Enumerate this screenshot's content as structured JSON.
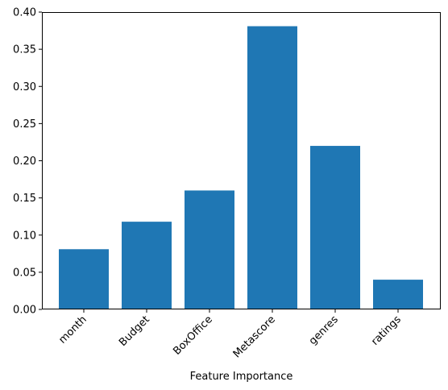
{
  "chart_data": {
    "type": "bar",
    "categories": [
      "month",
      "Budget",
      "BoxOffice",
      "Metascore",
      "genres",
      "ratings"
    ],
    "values": [
      0.081,
      0.118,
      0.16,
      0.381,
      0.22,
      0.04
    ],
    "title": "",
    "xlabel": "Feature Importance",
    "ylabel": "",
    "ylim": [
      0,
      0.4
    ],
    "yticks": [
      "0.00",
      "0.05",
      "0.10",
      "0.15",
      "0.20",
      "0.25",
      "0.30",
      "0.35",
      "0.40"
    ],
    "grid": false,
    "bar_color": "#1f77b4"
  }
}
